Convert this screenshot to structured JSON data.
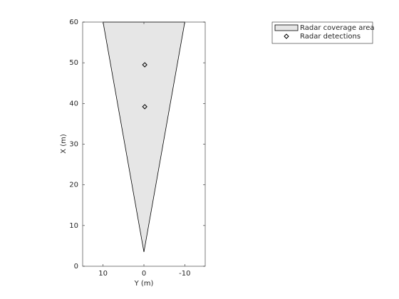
{
  "chart_data": {
    "type": "scatter",
    "xlabel": "Y (m)",
    "ylabel": "X (m)",
    "xlim": [
      15,
      -15
    ],
    "xticks": [
      10,
      0,
      -10
    ],
    "ylim": [
      0,
      60
    ],
    "yticks": [
      0,
      10,
      20,
      30,
      40,
      50,
      60
    ],
    "legend": "outside-top-right",
    "series": [
      {
        "name": "Radar coverage area",
        "kind": "area",
        "color": "#e6e6e6",
        "x": [
          0,
          10,
          -10
        ],
        "values": [
          3.5,
          60,
          60
        ]
      },
      {
        "name": "Radar detections",
        "kind": "marker",
        "marker": "diamond",
        "color": "#000000",
        "x": [
          -0.2,
          -0.2
        ],
        "values": [
          49.5,
          39.2
        ]
      }
    ]
  }
}
